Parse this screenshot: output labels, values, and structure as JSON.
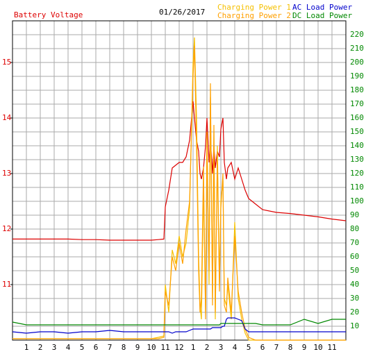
{
  "chart_data": {
    "type": "line",
    "title": "01/26/2017",
    "x": [
      0,
      1,
      2,
      3,
      4,
      5,
      6,
      7,
      8,
      9,
      10,
      10.5,
      10.9,
      11,
      11.25,
      11.5,
      11.75,
      12,
      12.25,
      12.5,
      12.75,
      13,
      13.1,
      13.25,
      13.4,
      13.5,
      13.6,
      13.75,
      13.9,
      14,
      14.15,
      14.25,
      14.4,
      14.5,
      14.6,
      14.75,
      14.9,
      15,
      15.15,
      15.25,
      15.4,
      15.5,
      15.75,
      16,
      16.25,
      16.5,
      16.75,
      17,
      17.5,
      18,
      19,
      20,
      21,
      22,
      23,
      24
    ],
    "xlim": [
      0,
      24
    ],
    "xticks": [
      1,
      2,
      3,
      4,
      5,
      6,
      7,
      8,
      9,
      10,
      11,
      12,
      {
        "value": 13,
        "label": "1"
      },
      {
        "value": 14,
        "label": "2"
      },
      {
        "value": 15,
        "label": "3"
      },
      {
        "value": 16,
        "label": "4"
      },
      {
        "value": 17,
        "label": "5"
      },
      {
        "value": 18,
        "label": "6"
      },
      {
        "value": 19,
        "label": "7"
      },
      {
        "value": 20,
        "label": "8"
      },
      {
        "value": 21,
        "label": "9"
      },
      {
        "value": 22,
        "label": "10"
      },
      {
        "value": 23,
        "label": "11"
      }
    ],
    "ylim": [
      10,
      15.75
    ],
    "yticks": [
      11,
      12,
      13,
      14,
      15
    ],
    "y2lim": [
      0,
      230
    ],
    "y2ticks": [
      10,
      20,
      30,
      40,
      50,
      60,
      70,
      80,
      90,
      100,
      110,
      120,
      130,
      140,
      150,
      160,
      170,
      180,
      190,
      200,
      210,
      220
    ],
    "grid": true,
    "series": [
      {
        "name": "Battery Voltage",
        "color": "#dd0000",
        "axis": "y",
        "values": [
          11.82,
          11.82,
          11.82,
          11.82,
          11.82,
          11.81,
          11.81,
          11.8,
          11.8,
          11.8,
          11.8,
          11.81,
          11.82,
          12.4,
          12.7,
          13.1,
          13.15,
          13.2,
          13.2,
          13.3,
          13.6,
          14.3,
          14.0,
          13.6,
          13.4,
          13.0,
          12.9,
          13.1,
          13.5,
          14.0,
          13.2,
          13.6,
          13.0,
          13.5,
          13.1,
          13.4,
          13.3,
          13.8,
          14.0,
          13.2,
          12.9,
          13.1,
          13.2,
          12.9,
          13.1,
          12.9,
          12.7,
          12.55,
          12.45,
          12.35,
          12.3,
          12.28,
          12.25,
          12.22,
          12.18,
          12.15
        ]
      },
      {
        "name": "Charging Power 1",
        "color": "#f5c000",
        "axis": "y2",
        "values": [
          1,
          1,
          1,
          1,
          1,
          1,
          1,
          1,
          1,
          1,
          1,
          2,
          3,
          40,
          20,
          65,
          55,
          75,
          60,
          70,
          95,
          200,
          218,
          160,
          60,
          25,
          15,
          110,
          20,
          150,
          40,
          175,
          30,
          150,
          15,
          140,
          40,
          100,
          115,
          30,
          25,
          40,
          15,
          85,
          30,
          15,
          5,
          0,
          0,
          0,
          0,
          0,
          0,
          0,
          0,
          0
        ]
      },
      {
        "name": "Charging Power 2",
        "color": "#ffa000",
        "axis": "y2",
        "values": [
          1,
          1,
          1,
          1,
          1,
          1,
          1,
          1,
          1,
          1,
          1,
          1,
          2,
          35,
          25,
          60,
          50,
          70,
          55,
          80,
          100,
          190,
          212,
          140,
          50,
          20,
          30,
          125,
          15,
          140,
          50,
          185,
          25,
          155,
          20,
          130,
          35,
          95,
          120,
          25,
          20,
          45,
          20,
          75,
          35,
          20,
          8,
          2,
          0,
          0,
          0,
          0,
          0,
          0,
          0,
          0
        ]
      },
      {
        "name": "AC Load Power",
        "color": "#0000cc",
        "axis": "y2",
        "values": [
          6,
          5,
          6,
          6,
          5,
          6,
          6,
          7,
          6,
          6,
          6,
          6,
          6,
          6,
          6,
          5,
          6,
          6,
          6,
          6,
          7,
          8,
          8,
          8,
          8,
          8,
          8,
          8,
          8,
          8,
          8,
          8,
          9,
          9,
          9,
          9,
          9,
          9,
          10,
          10,
          15,
          16,
          16,
          16,
          15,
          14,
          8,
          6,
          6,
          6,
          6,
          6,
          6,
          6,
          6,
          6
        ]
      },
      {
        "name": "DC Load Power",
        "color": "#008800",
        "axis": "y2",
        "values": [
          13,
          11,
          11,
          11,
          11,
          11,
          11,
          11,
          11,
          11,
          11,
          11,
          11,
          11,
          11,
          11,
          11,
          11,
          11,
          11,
          11,
          11,
          11,
          11,
          11,
          11,
          11,
          11,
          11,
          11,
          11,
          11,
          11,
          11,
          11,
          11,
          11,
          12,
          12,
          12,
          12,
          12,
          12,
          12,
          12,
          12,
          12,
          12,
          12,
          11,
          11,
          11,
          15,
          12,
          15,
          15
        ]
      }
    ]
  }
}
